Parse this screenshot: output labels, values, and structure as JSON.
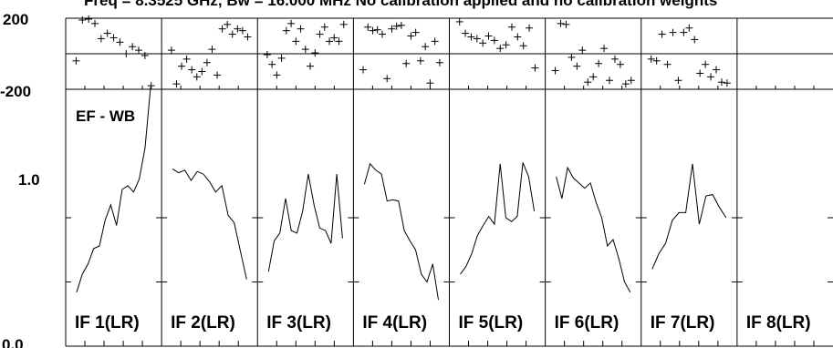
{
  "chart_data": {
    "type": "line",
    "title": "Freq = 8.3525 GHz, Bw = 16.000 MHz  No calibration applied and no calibration weights",
    "baseline_label": "EF - WB",
    "phase_panel": {
      "ytick_labels": [
        "200",
        "-200"
      ],
      "ylim": [
        -200,
        200
      ]
    },
    "amp_panel": {
      "ytick_labels": [
        "1.0",
        "0.0"
      ],
      "ylim": [
        0,
        2
      ]
    },
    "panels": [
      {
        "label": "IF 1(LR)",
        "phase": [
          -40,
          190,
          195,
          170,
          85,
          115,
          90,
          65,
          0,
          40,
          20,
          -10,
          -180
        ],
        "amp": [
          0.42,
          0.56,
          0.64,
          0.76,
          0.78,
          0.98,
          1.1,
          0.94,
          1.22,
          1.25,
          1.2,
          1.3,
          1.54,
          2.02
        ]
      },
      {
        "label": "IF 2(LR)",
        "phase": [
          20,
          -170,
          -70,
          -30,
          -90,
          -130,
          -100,
          -50,
          25,
          -120,
          140,
          165,
          110,
          140,
          130,
          95
        ],
        "amp": [
          1.38,
          1.35,
          1.37,
          1.29,
          1.36,
          1.34,
          1.28,
          1.2,
          1.25,
          1.02,
          0.96,
          0.74,
          0.52
        ]
      },
      {
        "label": "IF 3(LR)",
        "phase": [
          -5,
          -60,
          -120,
          -25,
          130,
          170,
          70,
          140,
          25,
          -70,
          5,
          110,
          150,
          70,
          90,
          70,
          165
        ],
        "amp": [
          0.58,
          0.82,
          0.88,
          1.15,
          0.9,
          0.88,
          1.05,
          1.34,
          1.1,
          0.92,
          0.9,
          0.8,
          1.34,
          0.84
        ]
      },
      {
        "label": "IF 4(LR)",
        "phase": [
          -90,
          150,
          130,
          135,
          110,
          -140,
          140,
          155,
          160,
          -55,
          100,
          120,
          -40,
          40,
          -165,
          70,
          -50
        ],
        "amp": [
          1.26,
          1.42,
          1.37,
          1.34,
          1.13,
          1.14,
          1.13,
          0.9,
          0.82,
          0.75,
          0.56,
          0.5,
          0.64,
          0.36
        ]
      },
      {
        "label": "IF 5(LR)",
        "phase": [
          180,
          115,
          95,
          85,
          60,
          100,
          75,
          30,
          50,
          150,
          95,
          45,
          145,
          -80
        ],
        "amp": [
          0.56,
          0.62,
          0.72,
          0.86,
          0.94,
          1.01,
          0.95,
          1.42,
          1.0,
          0.97,
          1.01,
          1.43,
          1.32,
          1.05
        ]
      },
      {
        "label": "IF 6(LR)",
        "phase": [
          -95,
          170,
          165,
          -20,
          -70,
          20,
          -160,
          -130,
          -55,
          30,
          -150,
          -30,
          -60,
          -170,
          -150
        ],
        "amp": [
          1.32,
          1.15,
          1.39,
          1.31,
          1.27,
          1.23,
          1.27,
          1.12,
          1.0,
          0.78,
          0.83,
          0.68,
          0.5,
          0.42
        ]
      },
      {
        "label": "IF 7(LR)",
        "phase": [
          -30,
          -40,
          110,
          -60,
          120,
          -150,
          120,
          145,
          80,
          -110,
          -60,
          -130,
          -90,
          -160,
          -165
        ],
        "amp": [
          0.6,
          0.72,
          0.8,
          0.98,
          1.04,
          1.04,
          1.42,
          0.95,
          1.17,
          1.18,
          1.08,
          1.0
        ]
      },
      {
        "label": "IF 8(LR)",
        "phase": [],
        "amp": []
      }
    ]
  }
}
